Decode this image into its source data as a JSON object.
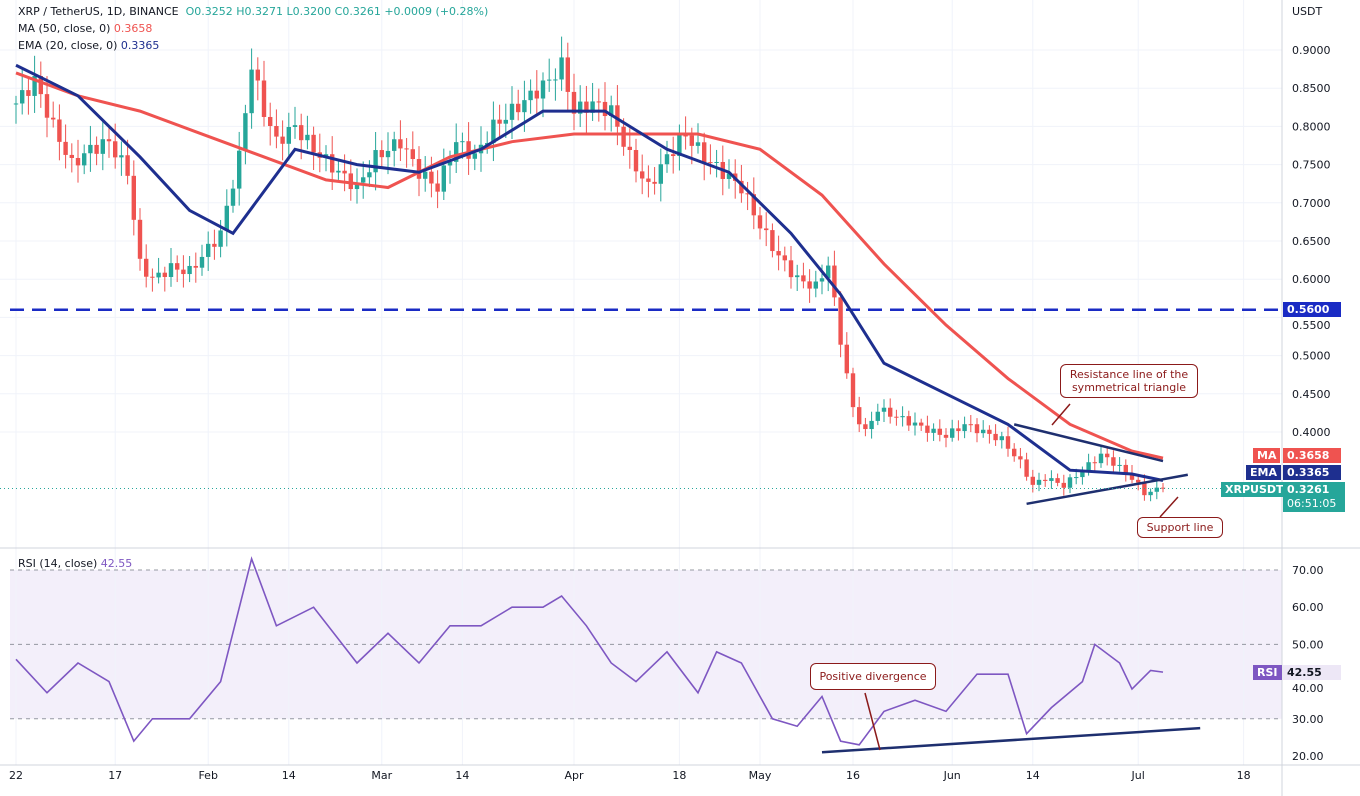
{
  "header": {
    "symbol": "XRP / TetherUS, 1D, BINANCE",
    "open": "O0.3252",
    "high": "H0.3271",
    "low": "L0.3200",
    "close": "C0.3261",
    "change": "+0.0009 (+0.28%)"
  },
  "indicators": {
    "ma_label": "MA (50, close, 0)",
    "ma_value": "0.3658",
    "ema_label": "EMA (20, close, 0)",
    "ema_value": "0.3365",
    "rsi_label": "RSI (14, close)",
    "rsi_value": "42.55"
  },
  "colors": {
    "up": "#26a69a",
    "down": "#ef5350",
    "ma": "#ef5350",
    "ema": "#1e2f8f",
    "rsi": "#7e57c2"
  },
  "axis": {
    "currency": "USDT"
  },
  "tags": {
    "ma": "MA",
    "ma_val": "0.3658",
    "ema": "EMA",
    "ema_val": "0.3365",
    "sym": "XRPUSDT",
    "sym_val": "0.3261",
    "countdown": "06:51:05",
    "level": "0.5600",
    "rsi": "RSI",
    "rsi_val": "42.55"
  },
  "annotations": {
    "resistance": "Resistance line of the symmetrical triangle",
    "support": "Support line",
    "divergence": "Positive divergence"
  },
  "chart_data": [
    {
      "type": "candlestick",
      "title": "XRP / TetherUS, 1D, BINANCE",
      "ylim": [
        0.28,
        0.96
      ],
      "yticks": [
        "0.9000",
        "0.8500",
        "0.8000",
        "0.7500",
        "0.7000",
        "0.6500",
        "0.6000",
        "0.5500",
        "0.5000",
        "0.4500",
        "0.4000"
      ],
      "xticks": [
        {
          "d": 0,
          "l": "22"
        },
        {
          "d": 16,
          "l": "17"
        },
        {
          "d": 31,
          "l": "Feb"
        },
        {
          "d": 44,
          "l": "14"
        },
        {
          "d": 59,
          "l": "Mar"
        },
        {
          "d": 72,
          "l": "14"
        },
        {
          "d": 90,
          "l": "Apr"
        },
        {
          "d": 107,
          "l": "18"
        },
        {
          "d": 120,
          "l": "May"
        },
        {
          "d": 135,
          "l": "16"
        },
        {
          "d": 151,
          "l": "Jun"
        },
        {
          "d": 164,
          "l": "14"
        },
        {
          "d": 181,
          "l": "Jul"
        },
        {
          "d": 198,
          "l": "18"
        }
      ],
      "horizontal_level": 0.56,
      "close": [
        [
          0,
          0.83
        ],
        [
          3,
          0.86
        ],
        [
          6,
          0.8
        ],
        [
          9,
          0.75
        ],
        [
          12,
          0.77
        ],
        [
          15,
          0.78
        ],
        [
          18,
          0.74
        ],
        [
          20,
          0.62
        ],
        [
          22,
          0.6
        ],
        [
          25,
          0.615
        ],
        [
          28,
          0.61
        ],
        [
          30,
          0.63
        ],
        [
          33,
          0.66
        ],
        [
          36,
          0.76
        ],
        [
          38,
          0.88
        ],
        [
          40,
          0.82
        ],
        [
          42,
          0.78
        ],
        [
          45,
          0.8
        ],
        [
          48,
          0.77
        ],
        [
          52,
          0.74
        ],
        [
          55,
          0.72
        ],
        [
          58,
          0.76
        ],
        [
          62,
          0.78
        ],
        [
          65,
          0.74
        ],
        [
          68,
          0.72
        ],
        [
          71,
          0.78
        ],
        [
          74,
          0.76
        ],
        [
          77,
          0.8
        ],
        [
          80,
          0.82
        ],
        [
          83,
          0.84
        ],
        [
          86,
          0.86
        ],
        [
          88,
          0.88
        ],
        [
          90,
          0.82
        ],
        [
          93,
          0.83
        ],
        [
          96,
          0.82
        ],
        [
          99,
          0.76
        ],
        [
          102,
          0.72
        ],
        [
          105,
          0.76
        ],
        [
          108,
          0.79
        ],
        [
          111,
          0.76
        ],
        [
          114,
          0.74
        ],
        [
          117,
          0.72
        ],
        [
          120,
          0.67
        ],
        [
          123,
          0.63
        ],
        [
          126,
          0.6
        ],
        [
          129,
          0.59
        ],
        [
          131,
          0.62
        ],
        [
          133,
          0.52
        ],
        [
          135,
          0.43
        ],
        [
          137,
          0.4
        ],
        [
          139,
          0.43
        ],
        [
          142,
          0.42
        ],
        [
          145,
          0.41
        ],
        [
          148,
          0.4
        ],
        [
          150,
          0.395
        ],
        [
          153,
          0.41
        ],
        [
          156,
          0.4
        ],
        [
          159,
          0.39
        ],
        [
          162,
          0.36
        ],
        [
          164,
          0.33
        ],
        [
          166,
          0.34
        ],
        [
          169,
          0.33
        ],
        [
          172,
          0.35
        ],
        [
          175,
          0.37
        ],
        [
          177,
          0.36
        ],
        [
          180,
          0.34
        ],
        [
          182,
          0.32
        ],
        [
          185,
          0.3261
        ]
      ],
      "ema20": [
        [
          0,
          0.88
        ],
        [
          10,
          0.84
        ],
        [
          20,
          0.76
        ],
        [
          28,
          0.69
        ],
        [
          35,
          0.66
        ],
        [
          45,
          0.77
        ],
        [
          55,
          0.75
        ],
        [
          65,
          0.74
        ],
        [
          75,
          0.77
        ],
        [
          85,
          0.82
        ],
        [
          95,
          0.82
        ],
        [
          105,
          0.77
        ],
        [
          115,
          0.74
        ],
        [
          125,
          0.66
        ],
        [
          133,
          0.58
        ],
        [
          140,
          0.49
        ],
        [
          150,
          0.45
        ],
        [
          160,
          0.41
        ],
        [
          170,
          0.35
        ],
        [
          180,
          0.345
        ],
        [
          185,
          0.3365
        ]
      ],
      "ma50": [
        [
          0,
          0.87
        ],
        [
          10,
          0.84
        ],
        [
          20,
          0.82
        ],
        [
          30,
          0.79
        ],
        [
          40,
          0.76
        ],
        [
          50,
          0.73
        ],
        [
          60,
          0.72
        ],
        [
          70,
          0.76
        ],
        [
          80,
          0.78
        ],
        [
          90,
          0.79
        ],
        [
          100,
          0.79
        ],
        [
          110,
          0.79
        ],
        [
          120,
          0.77
        ],
        [
          130,
          0.71
        ],
        [
          140,
          0.62
        ],
        [
          150,
          0.54
        ],
        [
          160,
          0.47
        ],
        [
          170,
          0.41
        ],
        [
          180,
          0.375
        ],
        [
          185,
          0.3658
        ]
      ],
      "resistance_line": [
        [
          161,
          0.41
        ],
        [
          185,
          0.362
        ]
      ],
      "support_line": [
        [
          163,
          0.306
        ],
        [
          189,
          0.344
        ]
      ]
    },
    {
      "type": "line",
      "title": "RSI (14, close)",
      "ylim": [
        18,
        75
      ],
      "yticks": [
        "70.00",
        "60.00",
        "50.00",
        "40.00",
        "30.00",
        "20.00"
      ],
      "band": [
        30,
        70
      ],
      "values": [
        [
          0,
          46
        ],
        [
          5,
          37
        ],
        [
          10,
          45
        ],
        [
          15,
          40
        ],
        [
          19,
          24
        ],
        [
          22,
          30
        ],
        [
          28,
          30
        ],
        [
          33,
          40
        ],
        [
          38,
          73
        ],
        [
          42,
          55
        ],
        [
          48,
          60
        ],
        [
          55,
          45
        ],
        [
          60,
          53
        ],
        [
          65,
          45
        ],
        [
          70,
          55
        ],
        [
          75,
          55
        ],
        [
          80,
          60
        ],
        [
          85,
          60
        ],
        [
          88,
          63
        ],
        [
          92,
          55
        ],
        [
          96,
          45
        ],
        [
          100,
          40
        ],
        [
          105,
          48
        ],
        [
          110,
          37
        ],
        [
          113,
          48
        ],
        [
          117,
          45
        ],
        [
          122,
          30
        ],
        [
          126,
          28
        ],
        [
          130,
          36
        ],
        [
          133,
          24
        ],
        [
          136,
          23
        ],
        [
          140,
          32
        ],
        [
          145,
          35
        ],
        [
          150,
          32
        ],
        [
          155,
          42
        ],
        [
          160,
          42
        ],
        [
          163,
          26
        ],
        [
          167,
          33
        ],
        [
          172,
          40
        ],
        [
          174,
          50
        ],
        [
          178,
          45
        ],
        [
          180,
          38
        ],
        [
          183,
          43
        ],
        [
          185,
          42.55
        ]
      ],
      "trend_line": [
        [
          130,
          21
        ],
        [
          191,
          27.5
        ]
      ]
    }
  ]
}
